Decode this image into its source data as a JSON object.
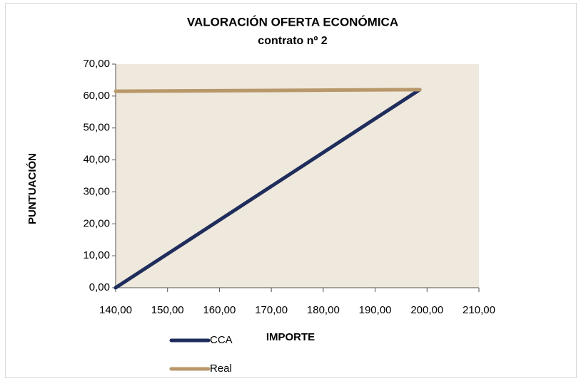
{
  "chart_data": {
    "type": "line",
    "title": "VALORACIÓN OFERTA ECONÓMICA",
    "subtitle": "contrato nº 2",
    "x_label": "IMPORTE",
    "y_label": "PUNTUACIÓN",
    "x": [
      140,
      198.6
    ],
    "series": [
      {
        "name": "CCA",
        "color": "#1f2d5c",
        "values": [
          0,
          62
        ]
      },
      {
        "name": "Real",
        "color": "#b8976a",
        "values": [
          61.5,
          62
        ]
      }
    ],
    "xlim": [
      140,
      210
    ],
    "xticks": [
      {
        "value": 140,
        "label": "140,00"
      },
      {
        "value": 150,
        "label": "150,00"
      },
      {
        "value": 160,
        "label": "160,00"
      },
      {
        "value": 170,
        "label": "170,00"
      },
      {
        "value": 180,
        "label": "180,00"
      },
      {
        "value": 190,
        "label": "190,00"
      },
      {
        "value": 200,
        "label": "200,00"
      },
      {
        "value": 210,
        "label": "210,00"
      }
    ],
    "ylim": [
      0,
      70
    ],
    "yticks": [
      {
        "value": 0,
        "label": "0,00"
      },
      {
        "value": 10,
        "label": "10,00"
      },
      {
        "value": 20,
        "label": "20,00"
      },
      {
        "value": 30,
        "label": "30,00"
      },
      {
        "value": 40,
        "label": "40,00"
      },
      {
        "value": 50,
        "label": "50,00"
      },
      {
        "value": 60,
        "label": "60,00"
      },
      {
        "value": 70,
        "label": "70,00"
      }
    ],
    "grid": false,
    "legend": "bottom",
    "plot_background": "#efe8dc"
  }
}
